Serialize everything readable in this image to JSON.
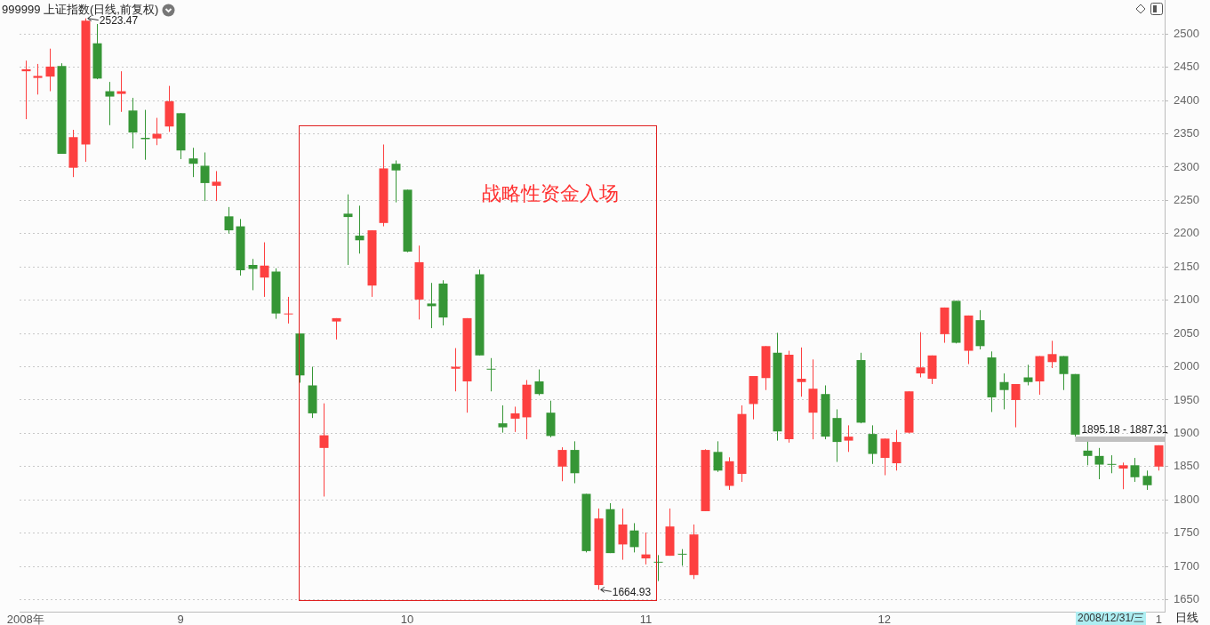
{
  "chart_data": {
    "type": "candlestick",
    "title": "999999 上证指数(日线,前复权)",
    "categories": [
      "2008年",
      null,
      null,
      null,
      null,
      null,
      null,
      null,
      null,
      null,
      null,
      null,
      null,
      "9",
      null,
      null,
      null,
      null,
      null,
      null,
      null,
      null,
      null,
      null,
      null,
      null,
      null,
      null,
      null,
      null,
      null,
      null,
      "10",
      null,
      null,
      null,
      null,
      null,
      null,
      null,
      null,
      null,
      null,
      null,
      null,
      null,
      null,
      null,
      null,
      null,
      null,
      null,
      "11",
      null,
      null,
      null,
      null,
      null,
      null,
      null,
      null,
      null,
      null,
      null,
      null,
      null,
      null,
      null,
      null,
      null,
      null,
      null,
      "12",
      null,
      null,
      null,
      null,
      null,
      null,
      null,
      null,
      null,
      null,
      null,
      null,
      null,
      null,
      null,
      null,
      null,
      null,
      null,
      null,
      null,
      null,
      "1"
    ],
    "ohlc": [
      [
        2444,
        2460,
        2372,
        2447
      ],
      [
        2434,
        2455,
        2409,
        2437
      ],
      [
        2436,
        2478,
        2414,
        2451
      ],
      [
        2452,
        2456,
        2320,
        2320
      ],
      [
        2299,
        2356,
        2285,
        2345
      ],
      [
        2334,
        2523.47,
        2308,
        2520
      ],
      [
        2486,
        2515,
        2432,
        2433
      ],
      [
        2414,
        2428,
        2363,
        2406
      ],
      [
        2410,
        2444,
        2383,
        2414
      ],
      [
        2385,
        2404,
        2328,
        2352
      ],
      [
        2344,
        2386,
        2311,
        2342
      ],
      [
        2343,
        2374,
        2333,
        2350
      ],
      [
        2361,
        2422,
        2353,
        2399
      ],
      [
        2381,
        2381,
        2312,
        2325
      ],
      [
        2313,
        2329,
        2285,
        2305
      ],
      [
        2302,
        2322,
        2249,
        2276
      ],
      [
        2272,
        2294,
        2249,
        2278
      ],
      [
        2226,
        2240,
        2200,
        2205
      ],
      [
        2211,
        2222,
        2137,
        2145
      ],
      [
        2153,
        2162,
        2115,
        2147
      ],
      [
        2134,
        2187,
        2105,
        2152
      ],
      [
        2143,
        2148,
        2072,
        2080
      ],
      [
        2079,
        2105,
        2065,
        2080
      ],
      [
        2050,
        2050,
        1976,
        1987
      ],
      [
        1972,
        2000,
        1923,
        1930
      ],
      [
        1878,
        1945,
        1805,
        1897
      ],
      [
        2068,
        2073,
        2041,
        2073
      ],
      [
        2230,
        2259,
        2153,
        2225
      ],
      [
        2197,
        2242,
        2170,
        2190
      ],
      [
        2122,
        2205,
        2105,
        2205
      ],
      [
        2216,
        2334,
        2211,
        2298
      ],
      [
        2305,
        2310,
        2247,
        2295
      ],
      [
        2266,
        2266,
        2172,
        2173
      ],
      [
        2101,
        2182,
        2071,
        2157
      ],
      [
        2095,
        2126,
        2058,
        2091
      ],
      [
        2125,
        2130,
        2062,
        2074
      ],
      [
        1997,
        2028,
        1963,
        2000
      ],
      [
        1978,
        2073,
        1931,
        2073
      ],
      [
        2139,
        2146,
        2017,
        2017
      ],
      [
        1997,
        2013,
        1963,
        1996
      ],
      [
        1915,
        1942,
        1901,
        1909
      ],
      [
        1922,
        1940,
        1902,
        1930
      ],
      [
        1924,
        1980,
        1891,
        1973
      ],
      [
        1978,
        1996,
        1957,
        1959
      ],
      [
        1931,
        1949,
        1894,
        1896
      ],
      [
        1850,
        1879,
        1828,
        1875
      ],
      [
        1875,
        1888,
        1825,
        1840
      ],
      [
        1809,
        1809,
        1721,
        1723
      ],
      [
        1672,
        1787,
        1664.93,
        1772
      ],
      [
        1786,
        1795,
        1720,
        1720
      ],
      [
        1733,
        1787,
        1710,
        1763
      ],
      [
        1754,
        1765,
        1721,
        1729
      ],
      [
        1712,
        1751,
        1703,
        1718
      ],
      [
        1707,
        1717,
        1678,
        1706
      ],
      [
        1716,
        1787,
        1716,
        1760
      ],
      [
        1719,
        1726,
        1701,
        1718
      ],
      [
        1687,
        1763,
        1681,
        1748
      ],
      [
        1783,
        1876,
        1783,
        1875
      ],
      [
        1872,
        1888,
        1842,
        1844
      ],
      [
        1821,
        1864,
        1815,
        1858
      ],
      [
        1839,
        1942,
        1827,
        1929
      ],
      [
        1944,
        1986,
        1921,
        1986
      ],
      [
        1983,
        2031,
        1965,
        2031
      ],
      [
        2021,
        2051,
        1889,
        1903
      ],
      [
        1891,
        2024,
        1886,
        2018
      ],
      [
        1977,
        2029,
        1955,
        1982
      ],
      [
        1931,
        2011,
        1891,
        1967
      ],
      [
        1959,
        1972,
        1891,
        1895
      ],
      [
        1923,
        1936,
        1857,
        1887
      ],
      [
        1889,
        1912,
        1872,
        1895
      ],
      [
        2010,
        2021,
        1915,
        1916
      ],
      [
        1899,
        1912,
        1854,
        1869
      ],
      [
        1863,
        1892,
        1837,
        1892
      ],
      [
        1855,
        1905,
        1844,
        1887
      ],
      [
        1901,
        1963,
        1900,
        1963
      ],
      [
        1990,
        2052,
        1984,
        1999
      ],
      [
        1982,
        2017,
        1974,
        2017
      ],
      [
        2049,
        2089,
        2036,
        2089
      ],
      [
        2099,
        2099,
        2035,
        2036
      ],
      [
        2024,
        2077,
        2004,
        2077
      ],
      [
        2070,
        2085,
        2026,
        2031
      ],
      [
        2014,
        2023,
        1932,
        1954
      ],
      [
        1977,
        1990,
        1936,
        1965
      ],
      [
        1950,
        1974,
        1909,
        1974
      ],
      [
        1984,
        2003,
        1972,
        1977
      ],
      [
        1978,
        2016,
        1958,
        2016
      ],
      [
        2007,
        2039,
        1998,
        2019
      ],
      [
        2016,
        2016,
        1965,
        1989
      ],
      [
        1989,
        1989,
        1895.18,
        1898
      ],
      [
        1874,
        1887.31,
        1852,
        1866
      ],
      [
        1866,
        1878,
        1831,
        1853
      ],
      [
        1854,
        1867,
        1840,
        1853
      ],
      [
        1847,
        1856,
        1816,
        1852
      ],
      [
        1852,
        1863,
        1827,
        1834
      ],
      [
        1836,
        1844,
        1815,
        1822
      ],
      [
        1850,
        1882,
        1844,
        1882
      ]
    ],
    "ylim": [
      1632,
      2550
    ],
    "yticks": [
      1650,
      1700,
      1750,
      1800,
      1850,
      1900,
      1950,
      2000,
      2050,
      2100,
      2150,
      2200,
      2250,
      2300,
      2350,
      2400,
      2450,
      2500
    ],
    "grid": "y",
    "bands": [
      {
        "axis": "y",
        "from": 1887.31,
        "to": 1895.18,
        "label": "1895.18 - 1887.31",
        "color": "#c0c0c0"
      }
    ],
    "annotations": [
      "2523.47",
      "1664.93",
      "战略性资金入场",
      "2008/12/31/三",
      "日线"
    ]
  }
}
